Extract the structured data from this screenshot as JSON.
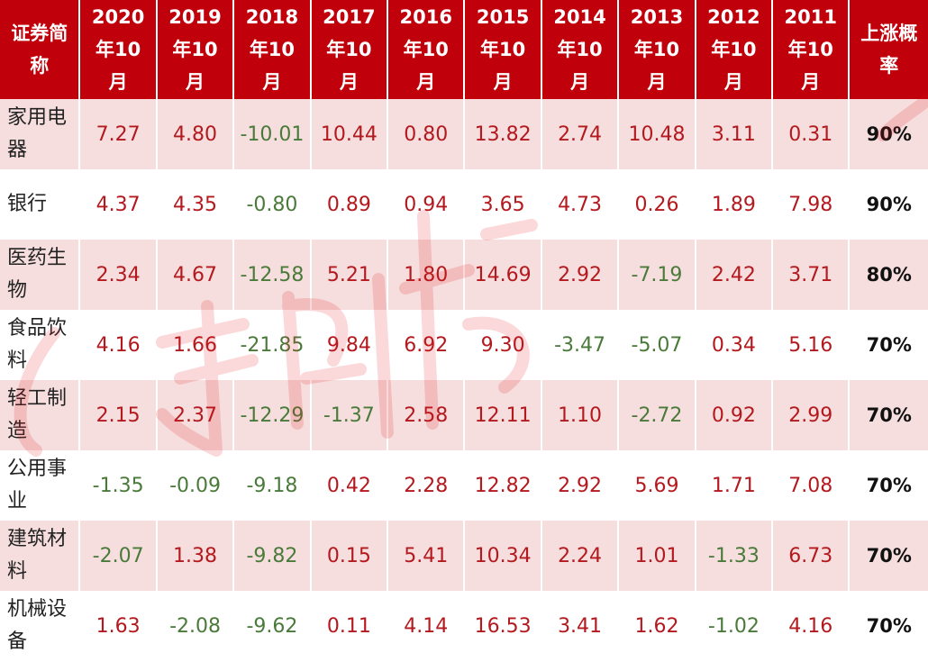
{
  "header": {
    "name": [
      "证券简",
      "称"
    ],
    "years": [
      [
        "2020",
        "年10",
        "月"
      ],
      [
        "2019",
        "年10",
        "月"
      ],
      [
        "2018",
        "年10",
        "月"
      ],
      [
        "2017",
        "年10",
        "月"
      ],
      [
        "2016",
        "年10",
        "月"
      ],
      [
        "2015",
        "年10",
        "月"
      ],
      [
        "2014",
        "年10",
        "月"
      ],
      [
        "2013",
        "年10",
        "月"
      ],
      [
        "2012",
        "年10",
        "月"
      ],
      [
        "2011",
        "年10",
        "月"
      ]
    ],
    "prob": [
      "上涨概",
      "率"
    ]
  },
  "rows": [
    {
      "name": [
        "家用电",
        "器"
      ],
      "values": [
        "7.27",
        "4.80",
        "-10.01",
        "10.44",
        "0.80",
        "13.82",
        "2.74",
        "10.48",
        "3.11",
        "0.31"
      ],
      "prob": "90%"
    },
    {
      "name": [
        "银行"
      ],
      "values": [
        "4.37",
        "4.35",
        "-0.80",
        "0.89",
        "0.94",
        "3.65",
        "4.73",
        "0.26",
        "1.89",
        "7.98"
      ],
      "prob": "90%"
    },
    {
      "name": [
        "医药生",
        "物"
      ],
      "values": [
        "2.34",
        "4.67",
        "-12.58",
        "5.21",
        "1.80",
        "14.69",
        "2.92",
        "-7.19",
        "2.42",
        "3.71"
      ],
      "prob": "80%"
    },
    {
      "name": [
        "食品饮",
        "料"
      ],
      "values": [
        "4.16",
        "1.66",
        "-21.85",
        "9.84",
        "6.92",
        "9.30",
        "-3.47",
        "-5.07",
        "0.34",
        "5.16"
      ],
      "prob": "70%"
    },
    {
      "name": [
        "轻工制",
        "造"
      ],
      "values": [
        "2.15",
        "2.37",
        "-12.29",
        "-1.37",
        "2.58",
        "12.11",
        "1.10",
        "-2.72",
        "0.92",
        "2.99"
      ],
      "prob": "70%"
    },
    {
      "name": [
        "公用事",
        "业"
      ],
      "values": [
        "-1.35",
        "-0.09",
        "-9.18",
        "0.42",
        "2.28",
        "12.82",
        "2.92",
        "5.69",
        "1.71",
        "7.08"
      ],
      "prob": "70%"
    },
    {
      "name": [
        "建筑材",
        "料"
      ],
      "values": [
        "-2.07",
        "1.38",
        "-9.82",
        "0.15",
        "5.41",
        "10.34",
        "2.24",
        "1.01",
        "-1.33",
        "6.73"
      ],
      "prob": "70%"
    },
    {
      "name": [
        "机械设",
        "备"
      ],
      "values": [
        "1.63",
        "-2.08",
        "-9.62",
        "0.11",
        "4.14",
        "16.53",
        "3.41",
        "1.62",
        "-1.02",
        "4.16"
      ],
      "prob": "70%"
    }
  ],
  "colors": {
    "header_bg": "#c0000a",
    "band_bg": "#f5dedd",
    "positive": "#b3191e",
    "negative": "#4a7a3a"
  }
}
